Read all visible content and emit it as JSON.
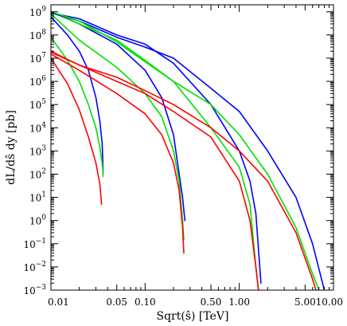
{
  "chart_data": {
    "type": "line",
    "title": "",
    "xlabel": "Sqrt(ŝ) [TeV]",
    "ylabel": "dL/dŝ dy [pb]",
    "x_scale": "log",
    "y_scale": "log",
    "xlim": [
      0.01,
      10
    ],
    "ylim": [
      0.001,
      2000000000
    ],
    "grid": false,
    "legend": "none",
    "x_ticks": [
      {
        "value": 0.01,
        "label": "0.01"
      },
      {
        "value": 0.05,
        "label": "0.05"
      },
      {
        "value": 0.1,
        "label": "0.10"
      },
      {
        "value": 0.5,
        "label": "0.50"
      },
      {
        "value": 1,
        "label": "1.00"
      },
      {
        "value": 5,
        "label": "5.00"
      },
      {
        "value": 10,
        "label": "10.00"
      }
    ],
    "y_ticks": [
      {
        "value": 0.001,
        "base": "10",
        "exp": "−3"
      },
      {
        "value": 0.01,
        "base": "10",
        "exp": "−2"
      },
      {
        "value": 0.1,
        "base": "10",
        "exp": "−1"
      },
      {
        "value": 1,
        "base": "10",
        "exp": "0"
      },
      {
        "value": 10,
        "base": "10",
        "exp": "1"
      },
      {
        "value": 100,
        "base": "10",
        "exp": "2"
      },
      {
        "value": 1000,
        "base": "10",
        "exp": "3"
      },
      {
        "value": 10000,
        "base": "10",
        "exp": "4"
      },
      {
        "value": 100000,
        "base": "10",
        "exp": "5"
      },
      {
        "value": 1000000,
        "base": "10",
        "exp": "6"
      },
      {
        "value": 10000000,
        "base": "10",
        "exp": "7"
      },
      {
        "value": 100000000,
        "base": "10",
        "exp": "8"
      },
      {
        "value": 1000000000,
        "base": "10",
        "exp": "9"
      }
    ],
    "series": [
      {
        "color": "#0000ff",
        "x": [
          0.01,
          0.015,
          0.02,
          0.025,
          0.03,
          0.033,
          0.035,
          0.0355,
          0.0357,
          0.0358
        ],
        "y": [
          600000000,
          100000000,
          20000000,
          3000000,
          200000,
          20000,
          2000,
          400,
          150,
          100
        ]
      },
      {
        "color": "#00e000",
        "x": [
          0.01,
          0.015,
          0.02,
          0.025,
          0.03,
          0.033,
          0.035,
          0.0355,
          0.0357
        ],
        "y": [
          80000000,
          8000000,
          1000000,
          100000,
          10000,
          1500,
          300,
          150,
          80
        ]
      },
      {
        "color": "#ff0000",
        "x": [
          0.01,
          0.015,
          0.02,
          0.025,
          0.03,
          0.033,
          0.0345
        ],
        "y": [
          10000000,
          800000,
          60000,
          4000,
          300,
          40,
          5
        ]
      },
      {
        "color": "#0000ff",
        "x": [
          0.01,
          0.02,
          0.05,
          0.1,
          0.15,
          0.2,
          0.23,
          0.25,
          0.26,
          0.265
        ],
        "y": [
          1000000000,
          300000000,
          40000000,
          3000000,
          200000,
          5000,
          100,
          10,
          2,
          1
        ]
      },
      {
        "color": "#00e000",
        "x": [
          0.01,
          0.02,
          0.05,
          0.1,
          0.15,
          0.2,
          0.23,
          0.25,
          0.258
        ],
        "y": [
          800000000,
          60000000,
          4000000,
          300000,
          30000,
          1000,
          50,
          1,
          0.15
        ]
      },
      {
        "color": "#ff0000",
        "x": [
          0.01,
          0.02,
          0.05,
          0.1,
          0.15,
          0.2,
          0.23,
          0.25,
          0.258
        ],
        "y": [
          15000000,
          3000000,
          300000,
          40000,
          5000,
          300,
          20,
          0.5,
          0.04
        ]
      },
      {
        "color": "#0000ff",
        "x": [
          0.01,
          0.02,
          0.05,
          0.1,
          0.2,
          0.5,
          1,
          1.3,
          1.5,
          1.65,
          1.7
        ],
        "y": [
          900000000,
          500000000,
          100000000,
          40000000,
          6000000,
          100000,
          1000,
          50,
          2,
          0.01,
          0.002
        ]
      },
      {
        "color": "#00e000",
        "x": [
          0.01,
          0.02,
          0.05,
          0.1,
          0.2,
          0.5,
          1,
          1.3,
          1.5,
          1.6
        ],
        "y": [
          1000000000,
          300000000,
          60000000,
          8000000,
          1000000,
          10000,
          200,
          5,
          0.01,
          0.001
        ]
      },
      {
        "color": "#ff0000",
        "x": [
          0.01,
          0.02,
          0.05,
          0.1,
          0.2,
          0.5,
          1,
          1.3,
          1.5,
          1.6
        ],
        "y": [
          20000000,
          5000000,
          1000000,
          300000,
          50000,
          4000,
          50,
          1,
          0.01,
          0.001
        ]
      },
      {
        "color": "#0000ff",
        "x": [
          0.01,
          0.02,
          0.05,
          0.1,
          0.2,
          0.5,
          1,
          2,
          4,
          6,
          8
        ],
        "y": [
          900000000,
          400000000,
          80000000,
          30000000,
          10000000,
          500000,
          50000,
          1000,
          10,
          0.1,
          0.001
        ]
      },
      {
        "color": "#00e000",
        "x": [
          0.01,
          0.02,
          0.05,
          0.1,
          0.2,
          0.5,
          1,
          2,
          4,
          6,
          7
        ],
        "y": [
          1000000000,
          400000000,
          50000000,
          7000000,
          1000000,
          100000,
          5000,
          100,
          0.5,
          0.005,
          0.001
        ]
      },
      {
        "color": "#ff0000",
        "x": [
          0.01,
          0.02,
          0.05,
          0.1,
          0.2,
          0.5,
          1,
          2,
          4,
          6,
          6.5
        ],
        "y": [
          18000000,
          5000000,
          1500000,
          400000,
          100000,
          10000,
          1000,
          50,
          0.3,
          0.003,
          0.001
        ]
      }
    ]
  }
}
